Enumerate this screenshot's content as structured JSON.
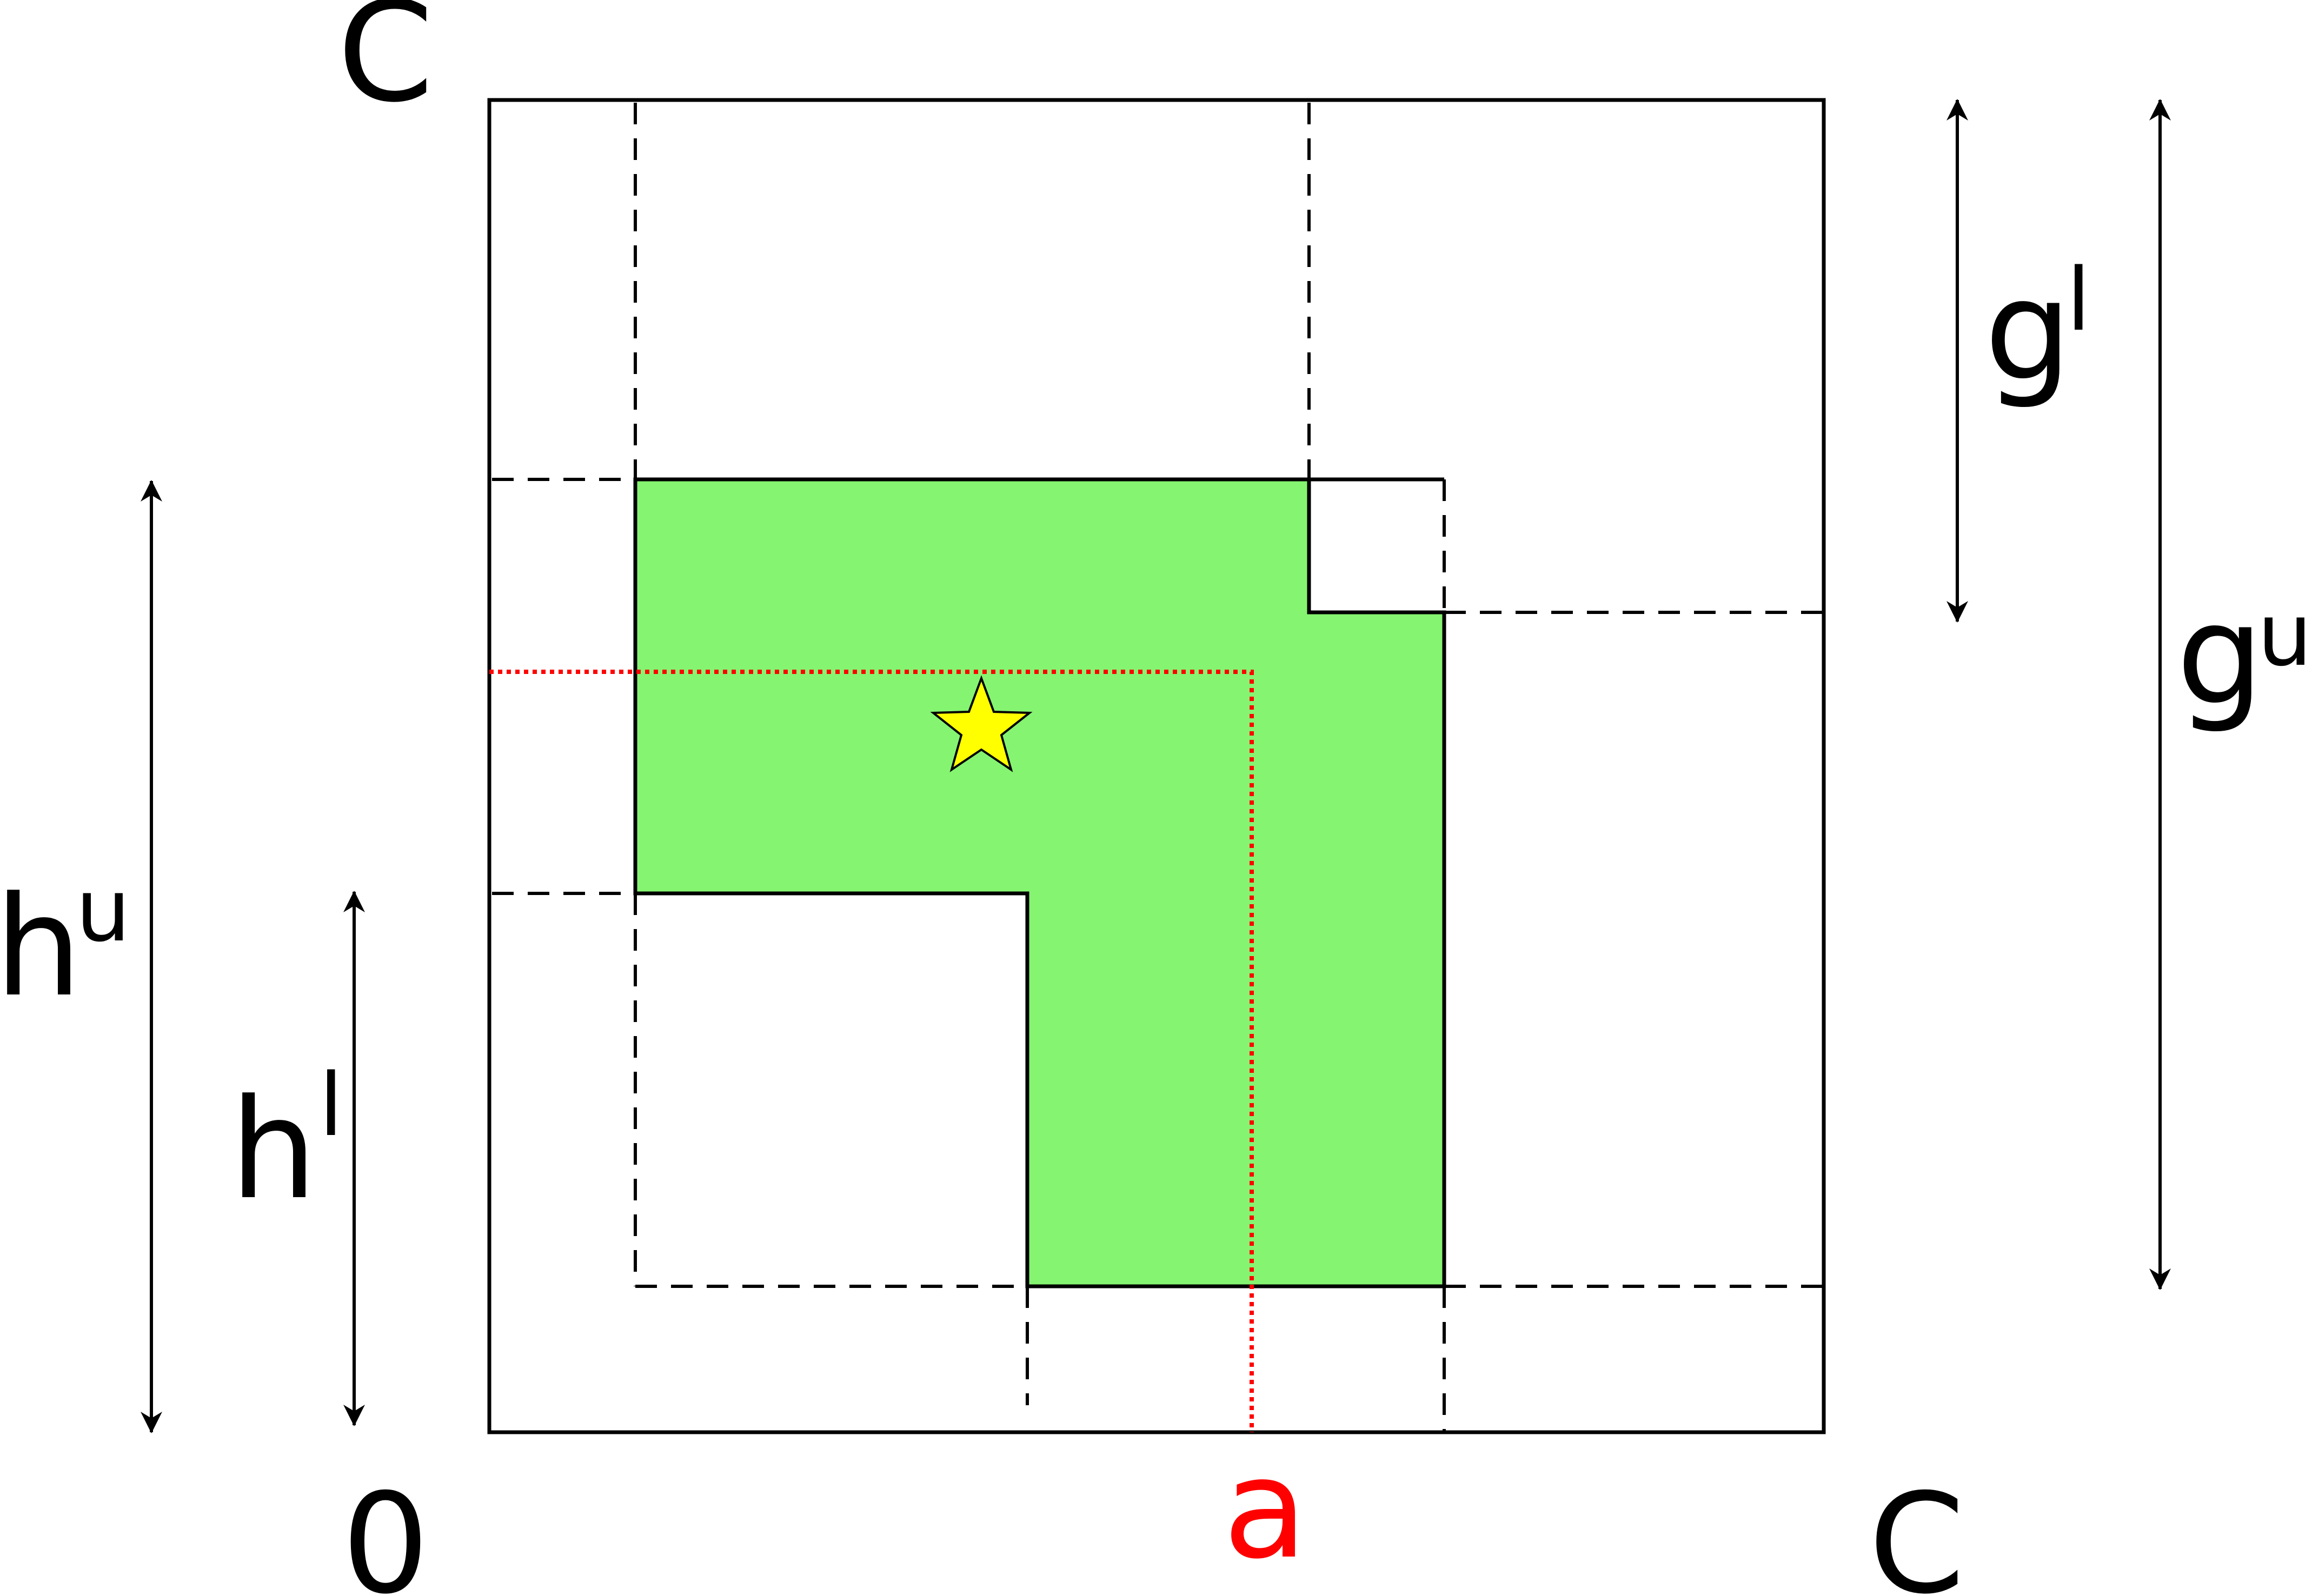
{
  "labels": {
    "c_top": "C",
    "zero": "0",
    "c_right": "C",
    "a": "a",
    "h_u_base": "h",
    "h_u_sup": "u",
    "h_l_base": "h",
    "h_l_sup": "l",
    "g_l_base": "g",
    "g_l_sup": "l",
    "g_u_base": "g",
    "g_u_sup": "u"
  },
  "colors": {
    "region_fill": "#85f470",
    "star_fill": "#ffff00",
    "a_line": "#ff0000",
    "a_label": "#ff0000",
    "stroke": "#000000"
  },
  "icons": {
    "marker": "star-icon"
  }
}
